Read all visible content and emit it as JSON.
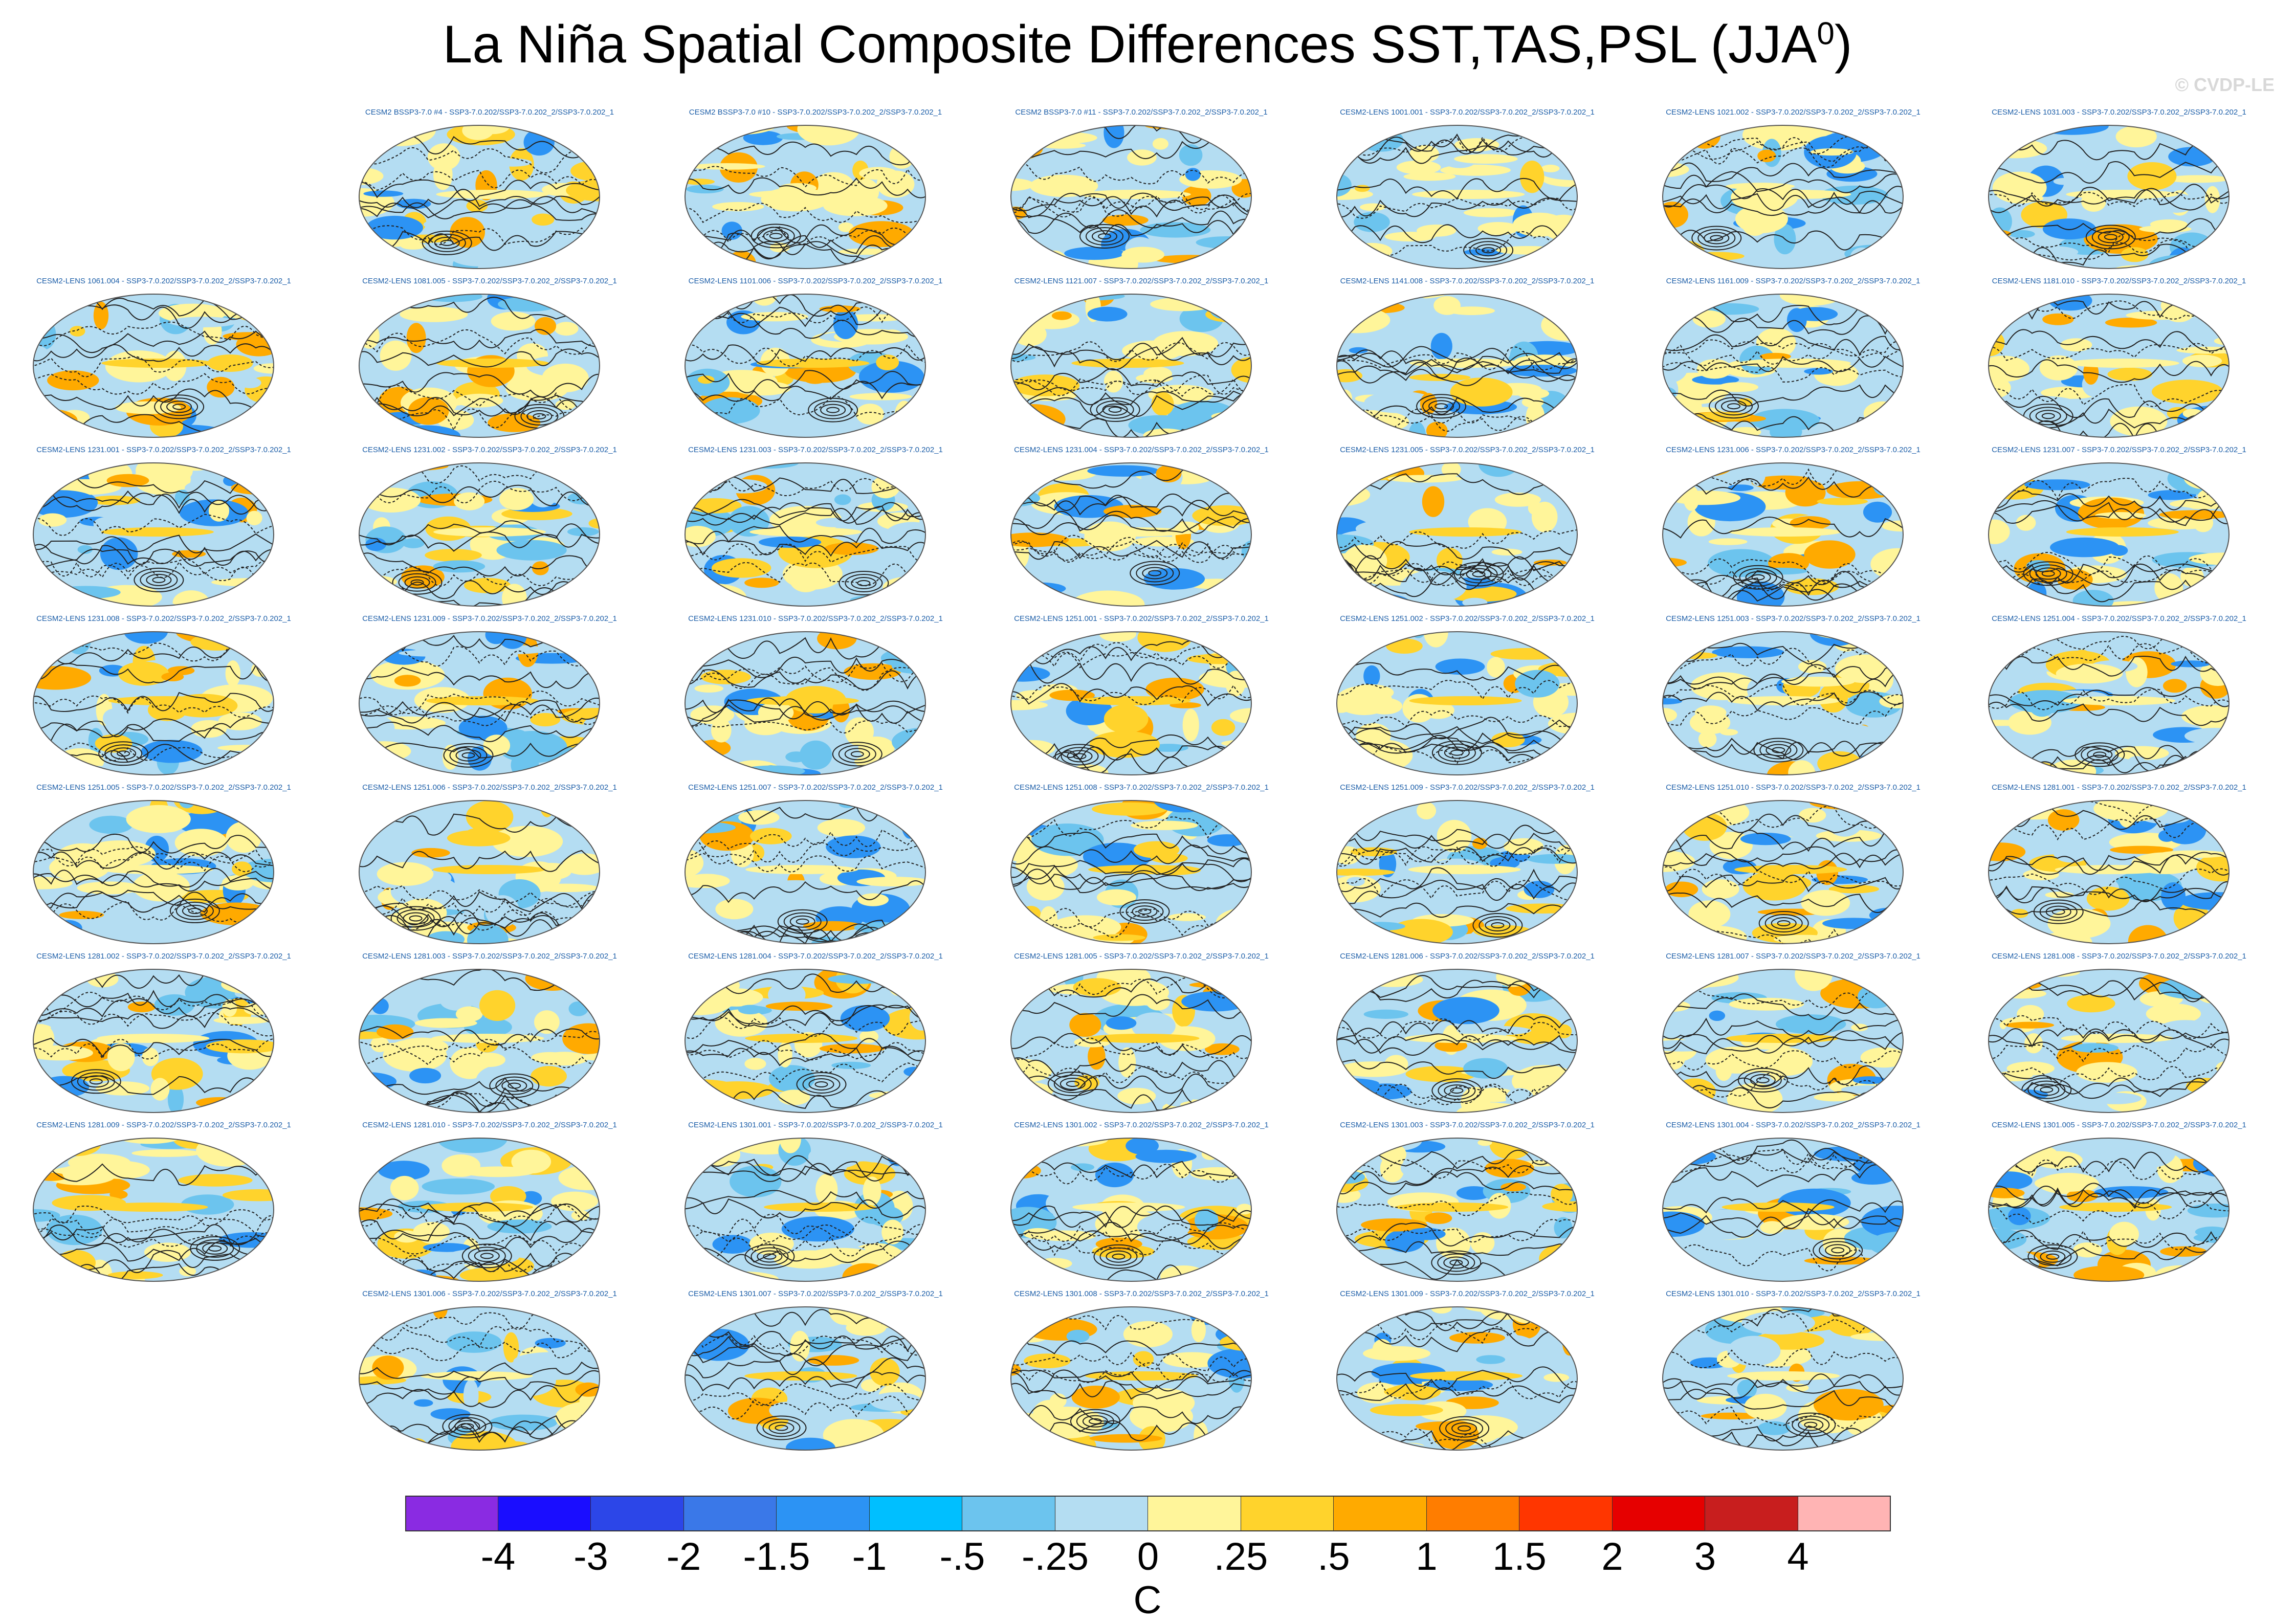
{
  "title": {
    "text": "La Niña Spatial Composite Differences SST,TAS,PSL (JJA",
    "superscript": "0",
    "close": ")"
  },
  "watermark": "© CVDP-LE",
  "map": {
    "projection": "Robinson (global)",
    "variables": [
      "SST",
      "TAS",
      "PSL"
    ],
    "season": "JJA",
    "units": "C"
  },
  "panels": [
    "CESM2 BSSP3-7.0 #4 - SSP3-7.0.202/SSP3-7.0.202_2/SSP3-7.0.202_1",
    "CESM2 BSSP3-7.0 #10 - SSP3-7.0.202/SSP3-7.0.202_2/SSP3-7.0.202_1",
    "CESM2 BSSP3-7.0 #11 - SSP3-7.0.202/SSP3-7.0.202_2/SSP3-7.0.202_1",
    "CESM2-LENS 1001.001 - SSP3-7.0.202/SSP3-7.0.202_2/SSP3-7.0.202_1",
    "CESM2-LENS 1021.002 - SSP3-7.0.202/SSP3-7.0.202_2/SSP3-7.0.202_1",
    "CESM2-LENS 1031.003 - SSP3-7.0.202/SSP3-7.0.202_2/SSP3-7.0.202_1",
    "CESM2-LENS 1061.004 - SSP3-7.0.202/SSP3-7.0.202_2/SSP3-7.0.202_1",
    "CESM2-LENS 1081.005 - SSP3-7.0.202/SSP3-7.0.202_2/SSP3-7.0.202_1",
    "CESM2-LENS 1101.006 - SSP3-7.0.202/SSP3-7.0.202_2/SSP3-7.0.202_1",
    "CESM2-LENS 1121.007 - SSP3-7.0.202/SSP3-7.0.202_2/SSP3-7.0.202_1",
    "CESM2-LENS 1141.008 - SSP3-7.0.202/SSP3-7.0.202_2/SSP3-7.0.202_1",
    "CESM2-LENS 1161.009 - SSP3-7.0.202/SSP3-7.0.202_2/SSP3-7.0.202_1",
    "CESM2-LENS 1181.010 - SSP3-7.0.202/SSP3-7.0.202_2/SSP3-7.0.202_1",
    "CESM2-LENS 1231.001 - SSP3-7.0.202/SSP3-7.0.202_2/SSP3-7.0.202_1",
    "CESM2-LENS 1231.002 - SSP3-7.0.202/SSP3-7.0.202_2/SSP3-7.0.202_1",
    "CESM2-LENS 1231.003 - SSP3-7.0.202/SSP3-7.0.202_2/SSP3-7.0.202_1",
    "CESM2-LENS 1231.004 - SSP3-7.0.202/SSP3-7.0.202_2/SSP3-7.0.202_1",
    "CESM2-LENS 1231.005 - SSP3-7.0.202/SSP3-7.0.202_2/SSP3-7.0.202_1",
    "CESM2-LENS 1231.006 - SSP3-7.0.202/SSP3-7.0.202_2/SSP3-7.0.202_1",
    "CESM2-LENS 1231.007 - SSP3-7.0.202/SSP3-7.0.202_2/SSP3-7.0.202_1",
    "CESM2-LENS 1231.008 - SSP3-7.0.202/SSP3-7.0.202_2/SSP3-7.0.202_1",
    "CESM2-LENS 1231.009 - SSP3-7.0.202/SSP3-7.0.202_2/SSP3-7.0.202_1",
    "CESM2-LENS 1231.010 - SSP3-7.0.202/SSP3-7.0.202_2/SSP3-7.0.202_1",
    "CESM2-LENS 1251.001 - SSP3-7.0.202/SSP3-7.0.202_2/SSP3-7.0.202_1",
    "CESM2-LENS 1251.002 - SSP3-7.0.202/SSP3-7.0.202_2/SSP3-7.0.202_1",
    "CESM2-LENS 1251.003 - SSP3-7.0.202/SSP3-7.0.202_2/SSP3-7.0.202_1",
    "CESM2-LENS 1251.004 - SSP3-7.0.202/SSP3-7.0.202_2/SSP3-7.0.202_1",
    "CESM2-LENS 1251.005 - SSP3-7.0.202/SSP3-7.0.202_2/SSP3-7.0.202_1",
    "CESM2-LENS 1251.006 - SSP3-7.0.202/SSP3-7.0.202_2/SSP3-7.0.202_1",
    "CESM2-LENS 1251.007 - SSP3-7.0.202/SSP3-7.0.202_2/SSP3-7.0.202_1",
    "CESM2-LENS 1251.008 - SSP3-7.0.202/SSP3-7.0.202_2/SSP3-7.0.202_1",
    "CESM2-LENS 1251.009 - SSP3-7.0.202/SSP3-7.0.202_2/SSP3-7.0.202_1",
    "CESM2-LENS 1251.010 - SSP3-7.0.202/SSP3-7.0.202_2/SSP3-7.0.202_1",
    "CESM2-LENS 1281.001 - SSP3-7.0.202/SSP3-7.0.202_2/SSP3-7.0.202_1",
    "CESM2-LENS 1281.002 - SSP3-7.0.202/SSP3-7.0.202_2/SSP3-7.0.202_1",
    "CESM2-LENS 1281.003 - SSP3-7.0.202/SSP3-7.0.202_2/SSP3-7.0.202_1",
    "CESM2-LENS 1281.004 - SSP3-7.0.202/SSP3-7.0.202_2/SSP3-7.0.202_1",
    "CESM2-LENS 1281.005 - SSP3-7.0.202/SSP3-7.0.202_2/SSP3-7.0.202_1",
    "CESM2-LENS 1281.006 - SSP3-7.0.202/SSP3-7.0.202_2/SSP3-7.0.202_1",
    "CESM2-LENS 1281.007 - SSP3-7.0.202/SSP3-7.0.202_2/SSP3-7.0.202_1",
    "CESM2-LENS 1281.008 - SSP3-7.0.202/SSP3-7.0.202_2/SSP3-7.0.202_1",
    "CESM2-LENS 1281.009 - SSP3-7.0.202/SSP3-7.0.202_2/SSP3-7.0.202_1",
    "CESM2-LENS 1281.010 - SSP3-7.0.202/SSP3-7.0.202_2/SSP3-7.0.202_1",
    "CESM2-LENS 1301.001 - SSP3-7.0.202/SSP3-7.0.202_2/SSP3-7.0.202_1",
    "CESM2-LENS 1301.002 - SSP3-7.0.202/SSP3-7.0.202_2/SSP3-7.0.202_1",
    "CESM2-LENS 1301.003 - SSP3-7.0.202/SSP3-7.0.202_2/SSP3-7.0.202_1",
    "CESM2-LENS 1301.004 - SSP3-7.0.202/SSP3-7.0.202_2/SSP3-7.0.202_1",
    "CESM2-LENS 1301.005 - SSP3-7.0.202/SSP3-7.0.202_2/SSP3-7.0.202_1",
    "CESM2-LENS 1301.006 - SSP3-7.0.202/SSP3-7.0.202_2/SSP3-7.0.202_1",
    "CESM2-LENS 1301.007 - SSP3-7.0.202/SSP3-7.0.202_2/SSP3-7.0.202_1",
    "CESM2-LENS 1301.008 - SSP3-7.0.202/SSP3-7.0.202_2/SSP3-7.0.202_1",
    "CESM2-LENS 1301.009 - SSP3-7.0.202/SSP3-7.0.202_2/SSP3-7.0.202_1",
    "CESM2-LENS 1301.010 - SSP3-7.0.202/SSP3-7.0.202_2/SSP3-7.0.202_1"
  ],
  "colorbar": {
    "ticks": [
      "-4",
      "-3",
      "-2",
      "-1.5",
      "-1",
      "-.5",
      "-.25",
      "0",
      ".25",
      ".5",
      "1",
      "1.5",
      "2",
      "3",
      "4"
    ],
    "colors": [
      "#8a2be2",
      "#1a0dff",
      "#2c46e8",
      "#3a78e8",
      "#2c93f4",
      "#00bfff",
      "#6cc4ee",
      "#b4ddf2",
      "#fff59a",
      "#ffd32c",
      "#ffaa00",
      "#ff7d00",
      "#ff3600",
      "#e60000",
      "#c81e1e",
      "#ffb4b4"
    ],
    "units": "C"
  }
}
